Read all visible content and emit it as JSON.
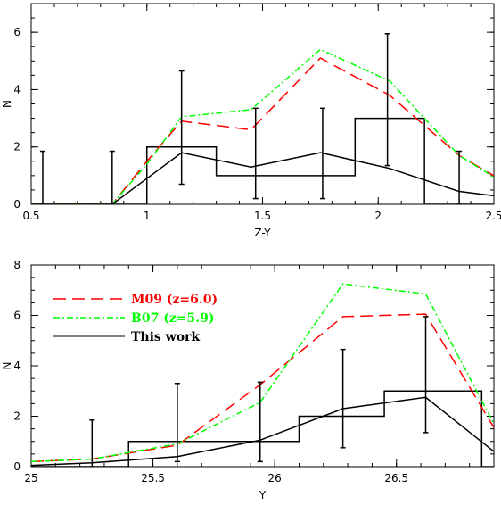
{
  "chart_data": [
    {
      "type": "line",
      "xlabel": "Z-Y",
      "ylabel": "N",
      "xlim": [
        0.5,
        2.5
      ],
      "ylim": [
        0,
        7
      ],
      "xticks": [
        "0.5",
        "1",
        "1.5",
        "2",
        "2.5"
      ],
      "yticks": [
        "0",
        "2",
        "4",
        "6"
      ],
      "series": [
        {
          "name": "M09 (z=6.0)",
          "style": "dashed",
          "color": "#ff0000",
          "x": [
            0.5,
            0.85,
            1.0,
            1.15,
            1.45,
            1.75,
            2.05,
            2.35,
            2.5
          ],
          "y": [
            0.0,
            0.0,
            1.5,
            2.9,
            2.6,
            5.1,
            3.8,
            1.7,
            1.0
          ]
        },
        {
          "name": "B07 (z=5.9)",
          "style": "dash-dot",
          "color": "#00ff00",
          "x": [
            0.5,
            0.85,
            1.0,
            1.15,
            1.45,
            1.75,
            2.05,
            2.35,
            2.5
          ],
          "y": [
            0.0,
            0.0,
            1.4,
            3.05,
            3.3,
            5.4,
            4.3,
            1.7,
            0.95
          ]
        },
        {
          "name": "This work",
          "style": "solid",
          "color": "#000000",
          "x": [
            0.5,
            0.85,
            1.0,
            1.15,
            1.45,
            1.75,
            2.05,
            2.35,
            2.5
          ],
          "y": [
            0.0,
            0.0,
            0.9,
            1.8,
            1.3,
            1.8,
            1.25,
            0.45,
            0.3
          ]
        }
      ],
      "histogram": {
        "edges": [
          0.5,
          1.0,
          1.3,
          1.9,
          2.2,
          2.5
        ],
        "values": [
          0,
          2,
          1,
          3,
          0
        ]
      },
      "error_bars": [
        {
          "x": 0.55,
          "low": 0.0,
          "high": 1.85
        },
        {
          "x": 0.85,
          "low": 0.0,
          "high": 1.85
        },
        {
          "x": 1.15,
          "low": 0.7,
          "high": 4.65
        },
        {
          "x": 1.47,
          "low": 0.2,
          "high": 3.35
        },
        {
          "x": 1.76,
          "low": 0.2,
          "high": 3.35
        },
        {
          "x": 2.04,
          "low": 1.35,
          "high": 5.95
        },
        {
          "x": 2.35,
          "low": 0.0,
          "high": 1.85
        }
      ]
    },
    {
      "type": "line",
      "xlabel": "Y",
      "ylabel": "N",
      "xlim": [
        25.0,
        26.9
      ],
      "ylim": [
        0,
        8
      ],
      "xticks": [
        "25",
        "25.5",
        "26",
        "26.5"
      ],
      "yticks": [
        "0",
        "2",
        "4",
        "6",
        "8"
      ],
      "legend_position": "top-left",
      "series": [
        {
          "name": "M09 (z=6.0)",
          "style": "dashed",
          "color": "#ff0000",
          "x": [
            25.0,
            25.25,
            25.6,
            25.94,
            26.28,
            26.62,
            26.9
          ],
          "y": [
            0.2,
            0.3,
            0.85,
            3.25,
            5.95,
            6.05,
            1.55
          ]
        },
        {
          "name": "B07 (z=5.9)",
          "style": "dash-dot",
          "color": "#00ff00",
          "x": [
            25.0,
            25.25,
            25.6,
            25.94,
            26.28,
            26.62,
            26.9
          ],
          "y": [
            0.2,
            0.3,
            0.9,
            2.55,
            7.25,
            6.85,
            1.7
          ]
        },
        {
          "name": "This work",
          "style": "solid",
          "color": "#000000",
          "x": [
            25.0,
            25.25,
            25.6,
            25.94,
            26.28,
            26.62,
            26.9
          ],
          "y": [
            0.05,
            0.15,
            0.4,
            1.05,
            2.3,
            2.75,
            0.6
          ]
        }
      ],
      "histogram": {
        "edges": [
          25.0,
          25.4,
          25.75,
          26.1,
          26.45,
          26.85,
          26.9
        ],
        "values": [
          0,
          1,
          1,
          2,
          3,
          0
        ]
      },
      "error_bars": [
        {
          "x": 25.25,
          "low": 0.0,
          "high": 1.85
        },
        {
          "x": 25.6,
          "low": 0.2,
          "high": 3.3
        },
        {
          "x": 25.94,
          "low": 0.2,
          "high": 3.35
        },
        {
          "x": 26.28,
          "low": 0.75,
          "high": 4.65
        },
        {
          "x": 26.62,
          "low": 1.35,
          "high": 5.95
        }
      ]
    }
  ]
}
